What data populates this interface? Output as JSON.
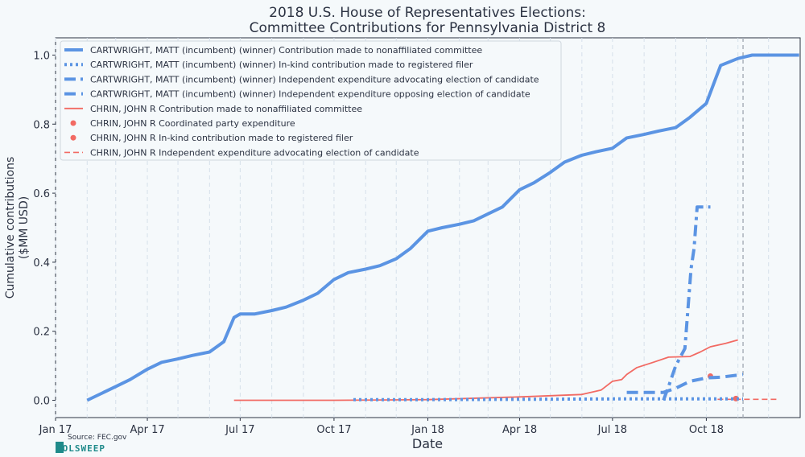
{
  "chart_data": {
    "type": "line",
    "title": "2018 U.S. House of Representatives Elections:",
    "subtitle": "Committee Contributions for Pennsylvania District 8",
    "xlabel": "Date",
    "ylabel": [
      "Cumulative contributions",
      "($MM USD)"
    ],
    "ylim": [
      -0.05,
      1.05
    ],
    "xlim": [
      "2017-01-01",
      "2019-01-01"
    ],
    "x_tick_labels": [
      "Jan 17",
      "Apr 17",
      "Jul 17",
      "Oct 17",
      "Jan 18",
      "Apr 18",
      "Jul 18",
      "Oct 18"
    ],
    "y_tick_labels": [
      "0.0",
      "0.2",
      "0.4",
      "0.6",
      "0.8",
      "1.0"
    ],
    "y_ticks": [
      0.0,
      0.2,
      0.4,
      0.6,
      0.8,
      1.0
    ],
    "grid": "vertical dashed",
    "legend_position": "top-left",
    "election_day": "2018-11-06",
    "series": [
      {
        "name": "CARTWRIGHT, MATT (incumbent) (winner) Contribution made to nonaffiliated committee",
        "color": "#5b94e3",
        "style": "solid-thick",
        "x": [
          "2017-02-01",
          "2017-02-15",
          "2017-03-01",
          "2017-03-15",
          "2017-04-01",
          "2017-04-15",
          "2017-05-01",
          "2017-05-15",
          "2017-06-01",
          "2017-06-15",
          "2017-06-25",
          "2017-07-01",
          "2017-07-15",
          "2017-08-01",
          "2017-08-15",
          "2017-09-01",
          "2017-09-15",
          "2017-10-01",
          "2017-10-15",
          "2017-11-01",
          "2017-11-15",
          "2017-12-01",
          "2017-12-15",
          "2018-01-01",
          "2018-01-15",
          "2018-02-01",
          "2018-02-15",
          "2018-03-01",
          "2018-03-15",
          "2018-04-01",
          "2018-04-15",
          "2018-05-01",
          "2018-05-15",
          "2018-06-01",
          "2018-06-15",
          "2018-07-01",
          "2018-07-15",
          "2018-08-01",
          "2018-08-15",
          "2018-09-01",
          "2018-09-15",
          "2018-10-01",
          "2018-10-15",
          "2018-11-01",
          "2018-11-15",
          "2018-12-01",
          "2018-12-31"
        ],
        "values": [
          0.0,
          0.02,
          0.04,
          0.06,
          0.09,
          0.11,
          0.12,
          0.13,
          0.14,
          0.17,
          0.24,
          0.25,
          0.25,
          0.26,
          0.27,
          0.29,
          0.31,
          0.35,
          0.37,
          0.38,
          0.39,
          0.41,
          0.44,
          0.49,
          0.5,
          0.51,
          0.52,
          0.54,
          0.56,
          0.61,
          0.63,
          0.66,
          0.69,
          0.71,
          0.72,
          0.73,
          0.76,
          0.77,
          0.78,
          0.79,
          0.82,
          0.86,
          0.97,
          0.99,
          1.0,
          1.0,
          1.0
        ]
      },
      {
        "name": "CARTWRIGHT, MATT (incumbent) (winner) In-kind contribution made to registered filer",
        "color": "#5b94e3",
        "style": "dotted-thick",
        "x": [
          "2017-10-20",
          "2018-01-01",
          "2018-04-01",
          "2018-07-01",
          "2018-10-01",
          "2018-11-06"
        ],
        "values": [
          0.002,
          0.002,
          0.003,
          0.004,
          0.004,
          0.004
        ]
      },
      {
        "name": "CARTWRIGHT, MATT (incumbent) (winner) Independent expenditure advocating election of candidate",
        "color": "#5b94e3",
        "style": "dashdot-thick",
        "x": [
          "2018-08-20",
          "2018-08-25",
          "2018-09-01",
          "2018-09-10",
          "2018-09-16",
          "2018-09-19",
          "2018-09-22",
          "2018-09-25",
          "2018-10-05"
        ],
        "values": [
          0.0,
          0.04,
          0.1,
          0.15,
          0.38,
          0.44,
          0.56,
          0.56,
          0.56
        ]
      },
      {
        "name": "CARTWRIGHT, MATT (incumbent) (winner) Independent expenditure opposing election of candidate",
        "color": "#5b94e3",
        "style": "dashed-thick",
        "x": [
          "2018-07-15",
          "2018-08-20",
          "2018-09-01",
          "2018-09-15",
          "2018-10-01",
          "2018-10-15",
          "2018-11-06"
        ],
        "values": [
          0.023,
          0.023,
          0.035,
          0.055,
          0.065,
          0.067,
          0.075
        ]
      },
      {
        "name": "CHRIN, JOHN R Contribution made to nonaffiliated committee",
        "color": "#f26a63",
        "style": "solid",
        "x": [
          "2017-06-25",
          "2017-10-01",
          "2018-01-01",
          "2018-04-01",
          "2018-06-01",
          "2018-06-20",
          "2018-07-01",
          "2018-07-10",
          "2018-07-15",
          "2018-07-25",
          "2018-08-10",
          "2018-08-25",
          "2018-09-15",
          "2018-09-25",
          "2018-10-05",
          "2018-10-20",
          "2018-11-01"
        ],
        "values": [
          0.0,
          0.0,
          0.002,
          0.01,
          0.017,
          0.03,
          0.055,
          0.06,
          0.075,
          0.095,
          0.11,
          0.125,
          0.127,
          0.14,
          0.155,
          0.165,
          0.175
        ]
      },
      {
        "name": "CHRIN, JOHN R Coordinated party expenditure",
        "color": "#f26a63",
        "style": "marker",
        "x": [
          "2018-10-05"
        ],
        "values": [
          0.07
        ]
      },
      {
        "name": "CHRIN, JOHN R In-kind contribution made to registered filer",
        "color": "#f26a63",
        "style": "marker",
        "x": [
          "2018-10-30"
        ],
        "values": [
          0.005
        ]
      },
      {
        "name": "CHRIN, JOHN R Independent expenditure advocating election of candidate",
        "color": "#f26a63",
        "style": "dashed",
        "x": [
          "2018-10-12",
          "2018-12-10"
        ],
        "values": [
          0.003,
          0.003
        ]
      }
    ]
  },
  "source": "Source: FEC.gov",
  "logo": "VOLSWEEP"
}
